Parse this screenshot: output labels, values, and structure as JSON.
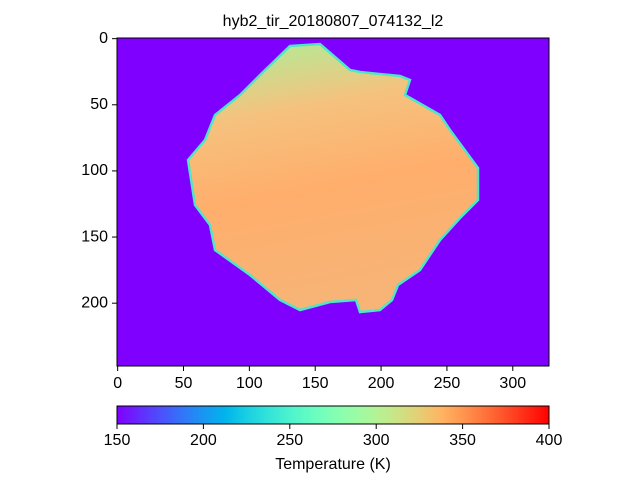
{
  "chart_data": {
    "type": "image",
    "title": "hyb2_tir_20180807_074132_l2",
    "xlim": [
      -0.5,
      327.5
    ],
    "xticks": [
      0,
      50,
      100,
      150,
      200,
      250,
      300
    ],
    "ylim": [
      -0.5,
      247.5
    ],
    "yticks": [
      0,
      50,
      100,
      150,
      200
    ],
    "y_inverted": true,
    "colorbar": {
      "label": "Temperature (K)",
      "lim": [
        150,
        400
      ],
      "ticks": [
        150,
        200,
        250,
        300,
        350,
        400
      ],
      "colormap": "rainbow"
    }
  }
}
